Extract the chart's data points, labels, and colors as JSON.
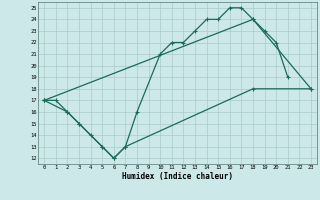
{
  "title": "",
  "xlabel": "Humidex (Indice chaleur)",
  "bg_color": "#cce8e8",
  "line_color": "#1a6b5a",
  "grid_color": "#aacccc",
  "xlim": [
    -0.5,
    23.5
  ],
  "ylim": [
    11.5,
    25.5
  ],
  "xticks": [
    0,
    1,
    2,
    3,
    4,
    5,
    6,
    7,
    8,
    9,
    10,
    11,
    12,
    13,
    14,
    15,
    16,
    17,
    18,
    19,
    20,
    21,
    22,
    23
  ],
  "yticks": [
    12,
    13,
    14,
    15,
    16,
    17,
    18,
    19,
    20,
    21,
    22,
    23,
    24,
    25
  ],
  "curve1_x": [
    0,
    1,
    2,
    3,
    4,
    5,
    6,
    7,
    8,
    10,
    11,
    12,
    13,
    14,
    15,
    16,
    17,
    18,
    19,
    20,
    21
  ],
  "curve1_y": [
    17,
    17,
    16,
    15,
    14,
    13,
    12,
    13,
    16,
    21,
    22,
    22,
    23,
    24,
    24,
    25,
    25,
    24,
    23,
    22,
    19
  ],
  "curve2_x": [
    0,
    2,
    3,
    5,
    6,
    7,
    18,
    23
  ],
  "curve2_y": [
    17,
    16,
    15,
    13,
    12,
    13,
    18,
    18
  ],
  "curve3_x": [
    0,
    18,
    23
  ],
  "curve3_y": [
    17,
    24,
    18
  ]
}
